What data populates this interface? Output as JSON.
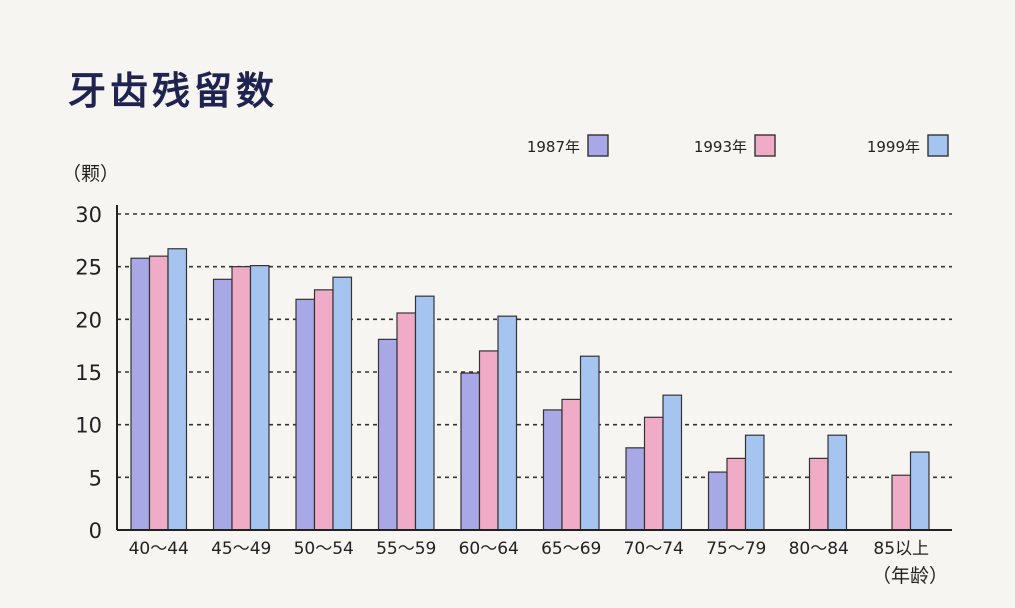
{
  "chart_data": {
    "type": "bar",
    "title": "牙齿残留数",
    "ylabel": "（颗）",
    "xlabel": "（年龄）",
    "ylim": [
      0,
      30
    ],
    "yticks": [
      "0",
      "5",
      "10",
      "15",
      "20",
      "25",
      "30"
    ],
    "grid": true,
    "legend_position": "top-right",
    "categories": [
      "40～44",
      "45～49",
      "50～54",
      "55～59",
      "60～64",
      "65～69",
      "70～74",
      "75～79",
      "80～84",
      "85以上"
    ],
    "series": [
      {
        "name": "1987年",
        "color": "#a9a8e6",
        "values": [
          25.8,
          23.8,
          21.9,
          18.1,
          14.9,
          11.4,
          7.8,
          5.5,
          null,
          null
        ]
      },
      {
        "name": "1993年",
        "color": "#f0acc6",
        "values": [
          26.0,
          25.0,
          22.8,
          20.6,
          17.0,
          12.4,
          10.7,
          6.8,
          6.8,
          5.2
        ]
      },
      {
        "name": "1999年",
        "color": "#a6c4f0",
        "values": [
          26.7,
          25.1,
          24.0,
          22.2,
          20.3,
          16.5,
          12.8,
          9.0,
          9.0,
          7.4
        ]
      }
    ]
  }
}
